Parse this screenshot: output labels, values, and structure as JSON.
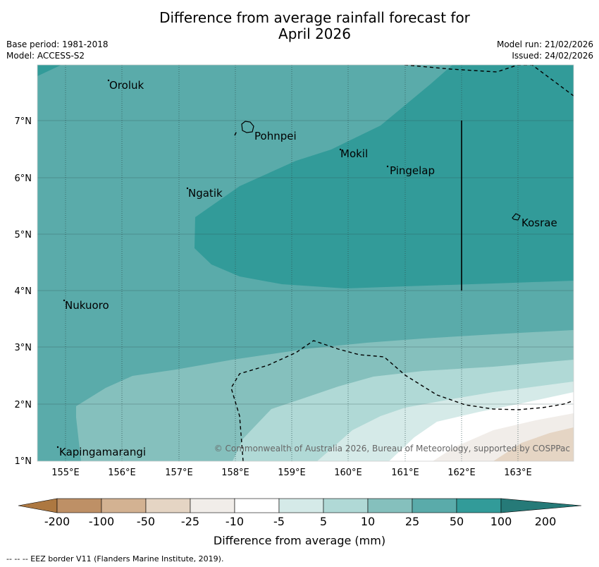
{
  "title": {
    "line1": "Difference from average rainfall forecast for",
    "line2": "April 2026"
  },
  "meta": {
    "base_period": "Base period: 1981-2018",
    "model": "Model: ACCESS-S2",
    "model_run": "Model run: 21/02/2026",
    "issued": "Issued: 24/02/2026"
  },
  "map": {
    "lat_labels": [
      "1°N",
      "2°N",
      "3°N",
      "4°N",
      "5°N",
      "6°N",
      "7°N"
    ],
    "lon_labels": [
      "155°E",
      "156°E",
      "157°E",
      "158°E",
      "159°E",
      "160°E",
      "161°E",
      "162°E",
      "163°E"
    ],
    "places": [
      "Oroluk",
      "Pohnpei",
      "Mokil",
      "Pingelap",
      "Ngatik",
      "Kosrae",
      "Nukuoro",
      "Kapingamarangi"
    ],
    "copyright": "© Commonwealth of Australia 2026, Bureau of Meteorology, supported by COSPPac"
  },
  "colorbar": {
    "title": "Difference from average (mm)",
    "labels": [
      "-200",
      "-100",
      "-50",
      "-25",
      "-10",
      "-5",
      "5",
      "10",
      "25",
      "50",
      "100",
      "200"
    ],
    "colors": [
      "#ad7841",
      "#be9066",
      "#d3b292",
      "#e5d5c4",
      "#f1ede9",
      "#ffffff",
      "#d5eae8",
      "#b0d9d6",
      "#85c0bd",
      "#5aabaa",
      "#329b99",
      "#267a78"
    ]
  },
  "footnote": "--  --  -- EEZ border V11 (Flanders Marine Institute, 2019)."
}
